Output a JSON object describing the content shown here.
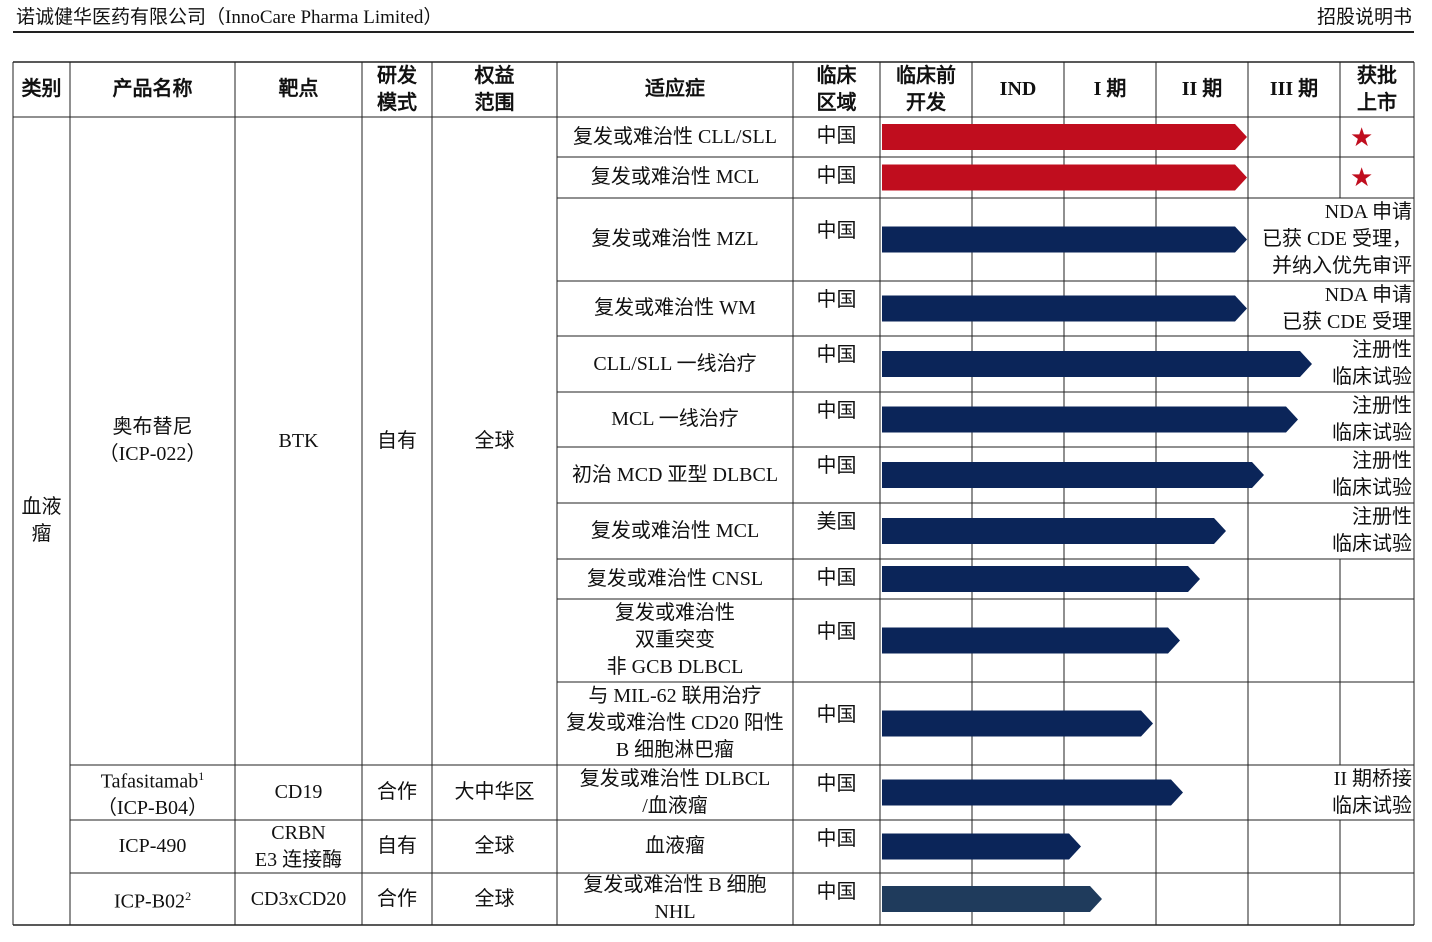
{
  "header": {
    "company": "诺诚健华医药有限公司（InnoCare Pharma Limited）",
    "document": "招股说明书"
  },
  "table": {
    "columns": [
      "类别",
      "产品名称",
      "靶点",
      "研发\n模式",
      "权益\n范围",
      "适应症",
      "临床\n区域",
      "临床前\n开发",
      "IND",
      "I 期",
      "II 期",
      "III 期",
      "获批\n上市"
    ],
    "category": "血液\n瘤",
    "products": [
      {
        "name": "奥布替尼",
        "code": "（ICP-022）",
        "target": "BTK",
        "mode": "自有",
        "rights": "全球",
        "indications": [
          {
            "name": "复发或难治性 CLL/SLL",
            "region": "中国",
            "mark": "★"
          },
          {
            "name": "复发或难治性 MCL",
            "region": "中国",
            "mark": "★"
          },
          {
            "name": "复发或难治性 MZL",
            "region": "中国",
            "note": "NDA 申请\n已获 CDE 受理，\n并纳入优先审评"
          },
          {
            "name": "复发或难治性 WM",
            "region": "中国",
            "note": "NDA 申请\n已获 CDE 受理"
          },
          {
            "name": "CLL/SLL 一线治疗",
            "region": "中国",
            "note": "注册性\n临床试验"
          },
          {
            "name": "MCL 一线治疗",
            "region": "中国",
            "note": "注册性\n临床试验"
          },
          {
            "name": "初治 MCD 亚型 DLBCL",
            "region": "中国",
            "note": "注册性\n临床试验"
          },
          {
            "name": "复发或难治性 MCL",
            "region": "美国",
            "note": "注册性\n临床试验"
          },
          {
            "name": "复发或难治性 CNSL",
            "region": "中国"
          },
          {
            "name": "复发或难治性\n双重突变\n非 GCB DLBCL",
            "region": "中国"
          },
          {
            "name": "与 MIL-62 联用治疗\n复发或难治性 CD20 阳性\nB 细胞淋巴瘤",
            "region": "中国"
          }
        ]
      },
      {
        "name": "Tafasitamab",
        "footnote": "1",
        "code": "（ICP-B04）",
        "target": "CD19",
        "mode": "合作",
        "rights": "大中华区",
        "indications": [
          {
            "name": "复发或难治性 DLBCL\n/血液瘤",
            "region": "中国",
            "note": "II 期桥接\n临床试验"
          }
        ]
      },
      {
        "name": "ICP-490",
        "target": "CRBN\nE3 连接酶",
        "mode": "自有",
        "rights": "全球",
        "indications": [
          {
            "name": "血液瘤",
            "region": "中国"
          }
        ]
      },
      {
        "name": "ICP-B02",
        "footnote": "2",
        "target": "CD3xCD20",
        "mode": "合作",
        "rights": "全球",
        "indications": [
          {
            "name": "复发或难治性 B 细胞\nNHL",
            "region": "中国"
          }
        ]
      }
    ]
  }
}
